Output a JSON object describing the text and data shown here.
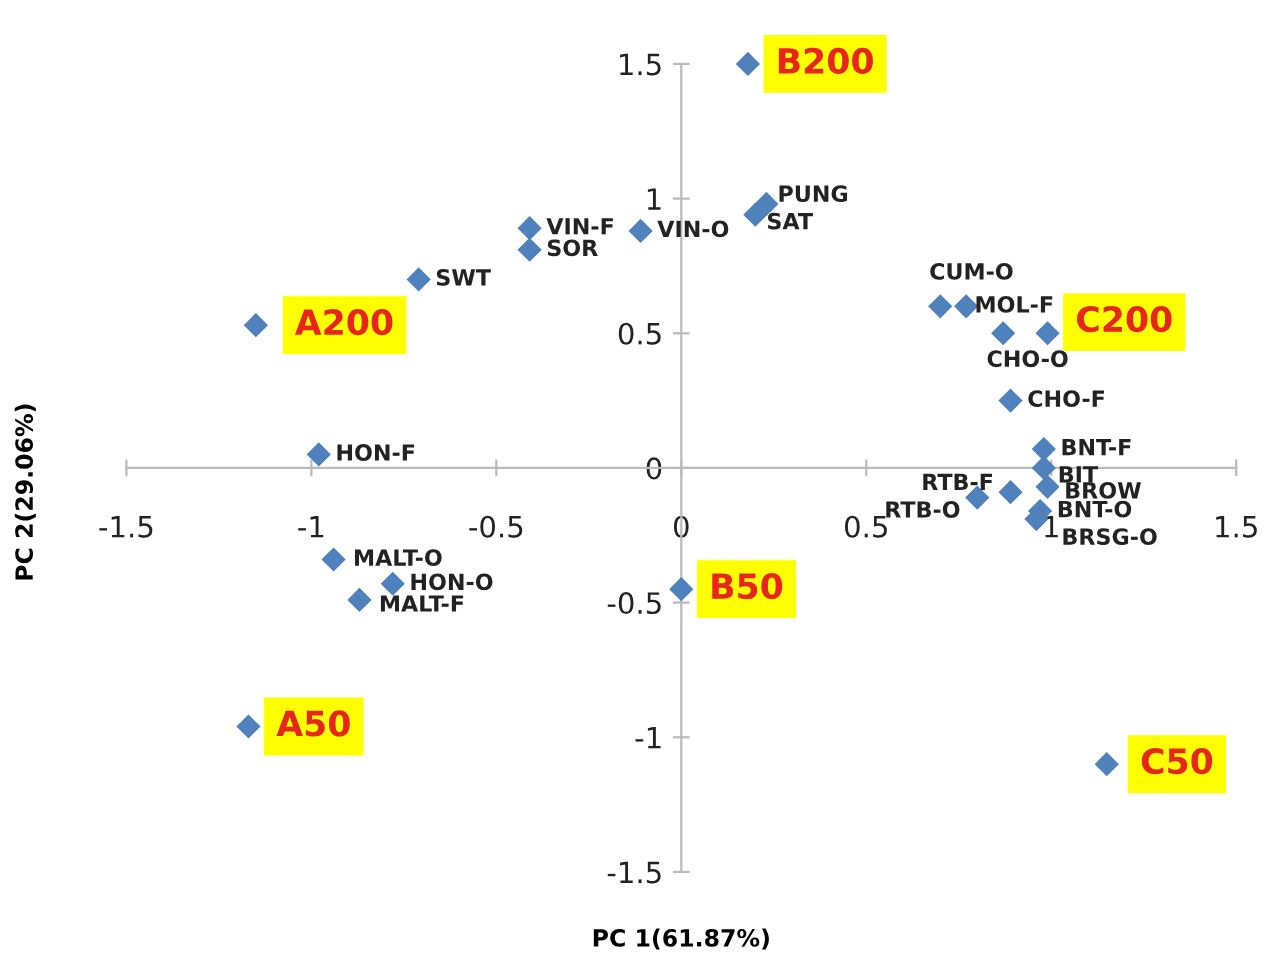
{
  "chart_data": {
    "type": "scatter",
    "xlabel": "PC 1(61.87%)",
    "ylabel": "PC 2(29.06%)",
    "xlim": [
      -1.5,
      1.5
    ],
    "ylim": [
      -1.5,
      1.5
    ],
    "xticks": [
      -1.5,
      -1,
      -0.5,
      0,
      0.5,
      1,
      1.5
    ],
    "yticks": [
      -1.5,
      -1,
      -0.5,
      0,
      0.5,
      1,
      1.5
    ],
    "grid": false,
    "legend": false,
    "marker": "diamond",
    "series": [
      {
        "color": "#4f81bd",
        "x": [
          0.18,
          0.23,
          0.2,
          -0.11,
          -0.41,
          -0.41,
          -0.71,
          -1.15,
          -0.98,
          0.7,
          0.77,
          0.87,
          0.99,
          0.89,
          0.98,
          0.98,
          0.99,
          0.89,
          0.8,
          0.97,
          0.96,
          0.0,
          -0.94,
          -0.78,
          -0.87,
          -1.17,
          1.15
        ],
        "values": [
          1.5,
          0.98,
          0.94,
          0.88,
          0.89,
          0.81,
          0.7,
          0.53,
          0.05,
          0.6,
          0.6,
          0.5,
          0.5,
          0.25,
          0.07,
          0.0,
          -0.07,
          -0.09,
          -0.11,
          -0.16,
          -0.19,
          -0.45,
          -0.34,
          -0.43,
          -0.49,
          -0.96,
          -1.1
        ]
      }
    ],
    "annotations": [
      {
        "text": "B200",
        "x": 0.18,
        "y": 1.5
      },
      {
        "text": "PUNG",
        "x": 0.23,
        "y": 0.98
      },
      {
        "text": "SAT",
        "x": 0.2,
        "y": 0.94
      },
      {
        "text": "VIN-O",
        "x": -0.11,
        "y": 0.88
      },
      {
        "text": "VIN-F",
        "x": -0.41,
        "y": 0.89
      },
      {
        "text": "SOR",
        "x": -0.41,
        "y": 0.81
      },
      {
        "text": "SWT",
        "x": -0.71,
        "y": 0.7
      },
      {
        "text": "A200",
        "x": -1.15,
        "y": 0.53
      },
      {
        "text": "HON-F",
        "x": -0.98,
        "y": 0.05
      },
      {
        "text": "CUM-O",
        "x": 0.7,
        "y": 0.6
      },
      {
        "text": "MOL-F",
        "x": 0.77,
        "y": 0.6
      },
      {
        "text": "CHO-O",
        "x": 0.87,
        "y": 0.5
      },
      {
        "text": "C200",
        "x": 0.99,
        "y": 0.5
      },
      {
        "text": "CHO-F",
        "x": 0.89,
        "y": 0.25
      },
      {
        "text": "BNT-F",
        "x": 0.98,
        "y": 0.07
      },
      {
        "text": "BIT",
        "x": 0.98,
        "y": 0.0
      },
      {
        "text": "BROW",
        "x": 0.99,
        "y": -0.07
      },
      {
        "text": "RTB-F",
        "x": 0.89,
        "y": -0.09
      },
      {
        "text": "RTB-O",
        "x": 0.8,
        "y": -0.11
      },
      {
        "text": "BNT-O",
        "x": 0.97,
        "y": -0.16
      },
      {
        "text": "BRSG-O",
        "x": 0.96,
        "y": -0.19
      },
      {
        "text": "B50",
        "x": 0.0,
        "y": -0.45
      },
      {
        "text": "MALT-O",
        "x": -0.94,
        "y": -0.34
      },
      {
        "text": "HON-O",
        "x": -0.78,
        "y": -0.43
      },
      {
        "text": "MALT-F",
        "x": -0.87,
        "y": -0.49
      },
      {
        "text": "A50",
        "x": -1.17,
        "y": -0.96
      },
      {
        "text": "C50",
        "x": 1.15,
        "y": -1.1
      }
    ]
  }
}
